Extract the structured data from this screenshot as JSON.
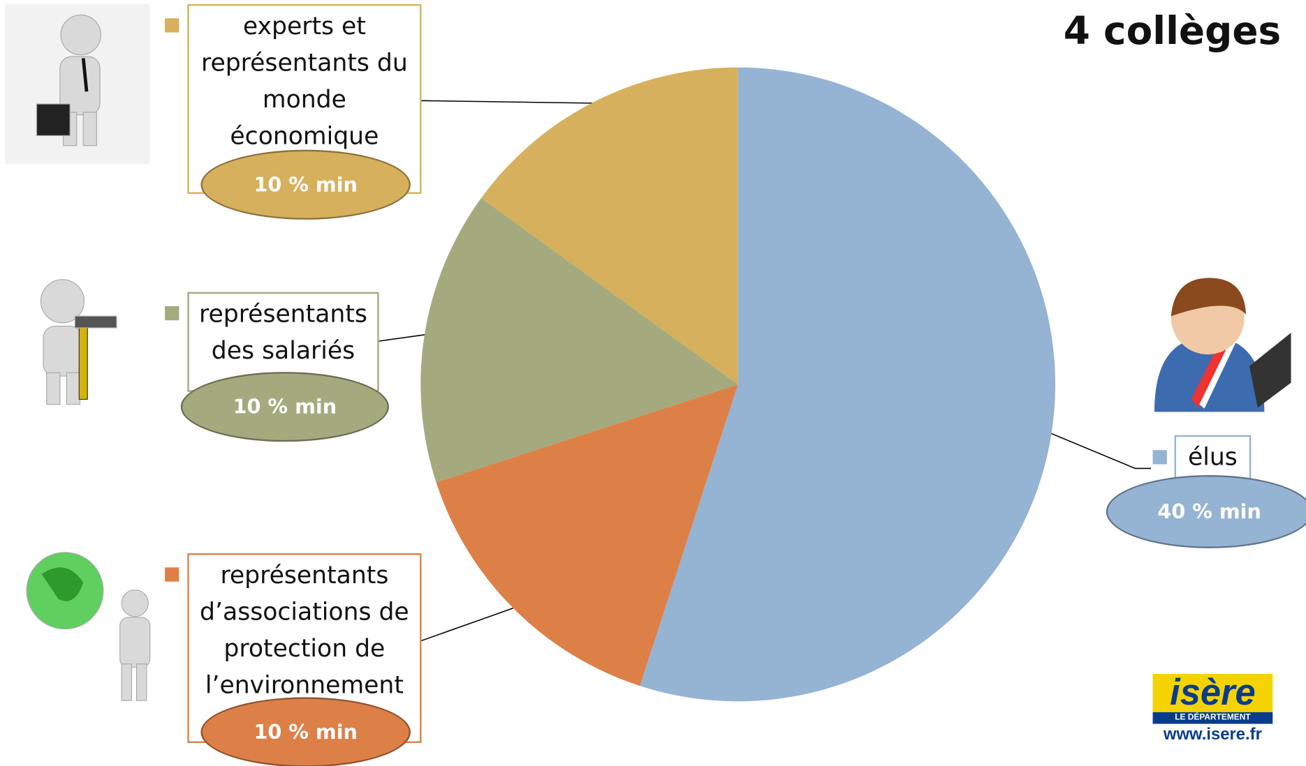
{
  "chart_data": {
    "type": "pie",
    "title": "4 collèges",
    "categories": [
      "élus",
      "représentants d’associations de protection de l’environnement",
      "représentants des salariés",
      "experts et représentants du monde économique"
    ],
    "values": [
      55,
      15,
      15,
      15
    ],
    "colors": [
      "#95b3d3",
      "#dd8048",
      "#a4aa7e",
      "#d6b05c"
    ],
    "annotations": [
      "40 % min",
      "10 % min",
      "10 % min",
      "10 % min"
    ]
  },
  "logo": {
    "name": "isère",
    "subtitle": "LE DÉPARTEMENT",
    "url": "www.isere.fr"
  }
}
